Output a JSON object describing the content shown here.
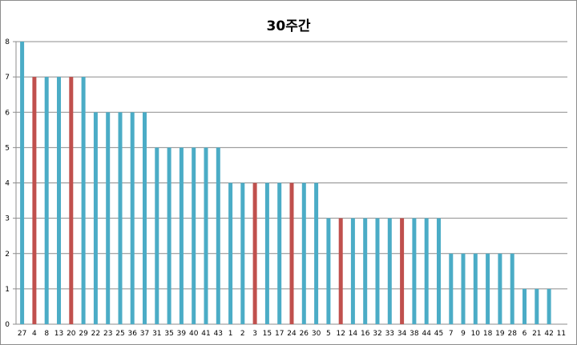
{
  "chart_data": {
    "type": "bar",
    "title": "30주간",
    "xlabel": "",
    "ylabel": "",
    "ylim": [
      0,
      8
    ],
    "yticks": [
      0,
      1,
      2,
      3,
      4,
      5,
      6,
      7,
      8
    ],
    "grid": true,
    "categories": [
      "27",
      "4",
      "8",
      "13",
      "20",
      "29",
      "22",
      "23",
      "25",
      "36",
      "37",
      "31",
      "35",
      "39",
      "40",
      "41",
      "43",
      "1",
      "2",
      "3",
      "15",
      "17",
      "24",
      "26",
      "30",
      "5",
      "12",
      "14",
      "16",
      "32",
      "33",
      "34",
      "38",
      "44",
      "45",
      "7",
      "9",
      "10",
      "18",
      "19",
      "28",
      "6",
      "21",
      "42",
      "11"
    ],
    "values": [
      8,
      7,
      7,
      7,
      7,
      7,
      6,
      6,
      6,
      6,
      6,
      5,
      5,
      5,
      5,
      5,
      5,
      4,
      4,
      4,
      4,
      4,
      4,
      4,
      4,
      3,
      3,
      3,
      3,
      3,
      3,
      3,
      3,
      3,
      3,
      2,
      2,
      2,
      2,
      2,
      2,
      1,
      1,
      1,
      0
    ],
    "highlighted": [
      "4",
      "20",
      "3",
      "24",
      "12",
      "34"
    ],
    "colors": {
      "bar": "#4bacc6",
      "highlight": "#c0504d"
    }
  }
}
